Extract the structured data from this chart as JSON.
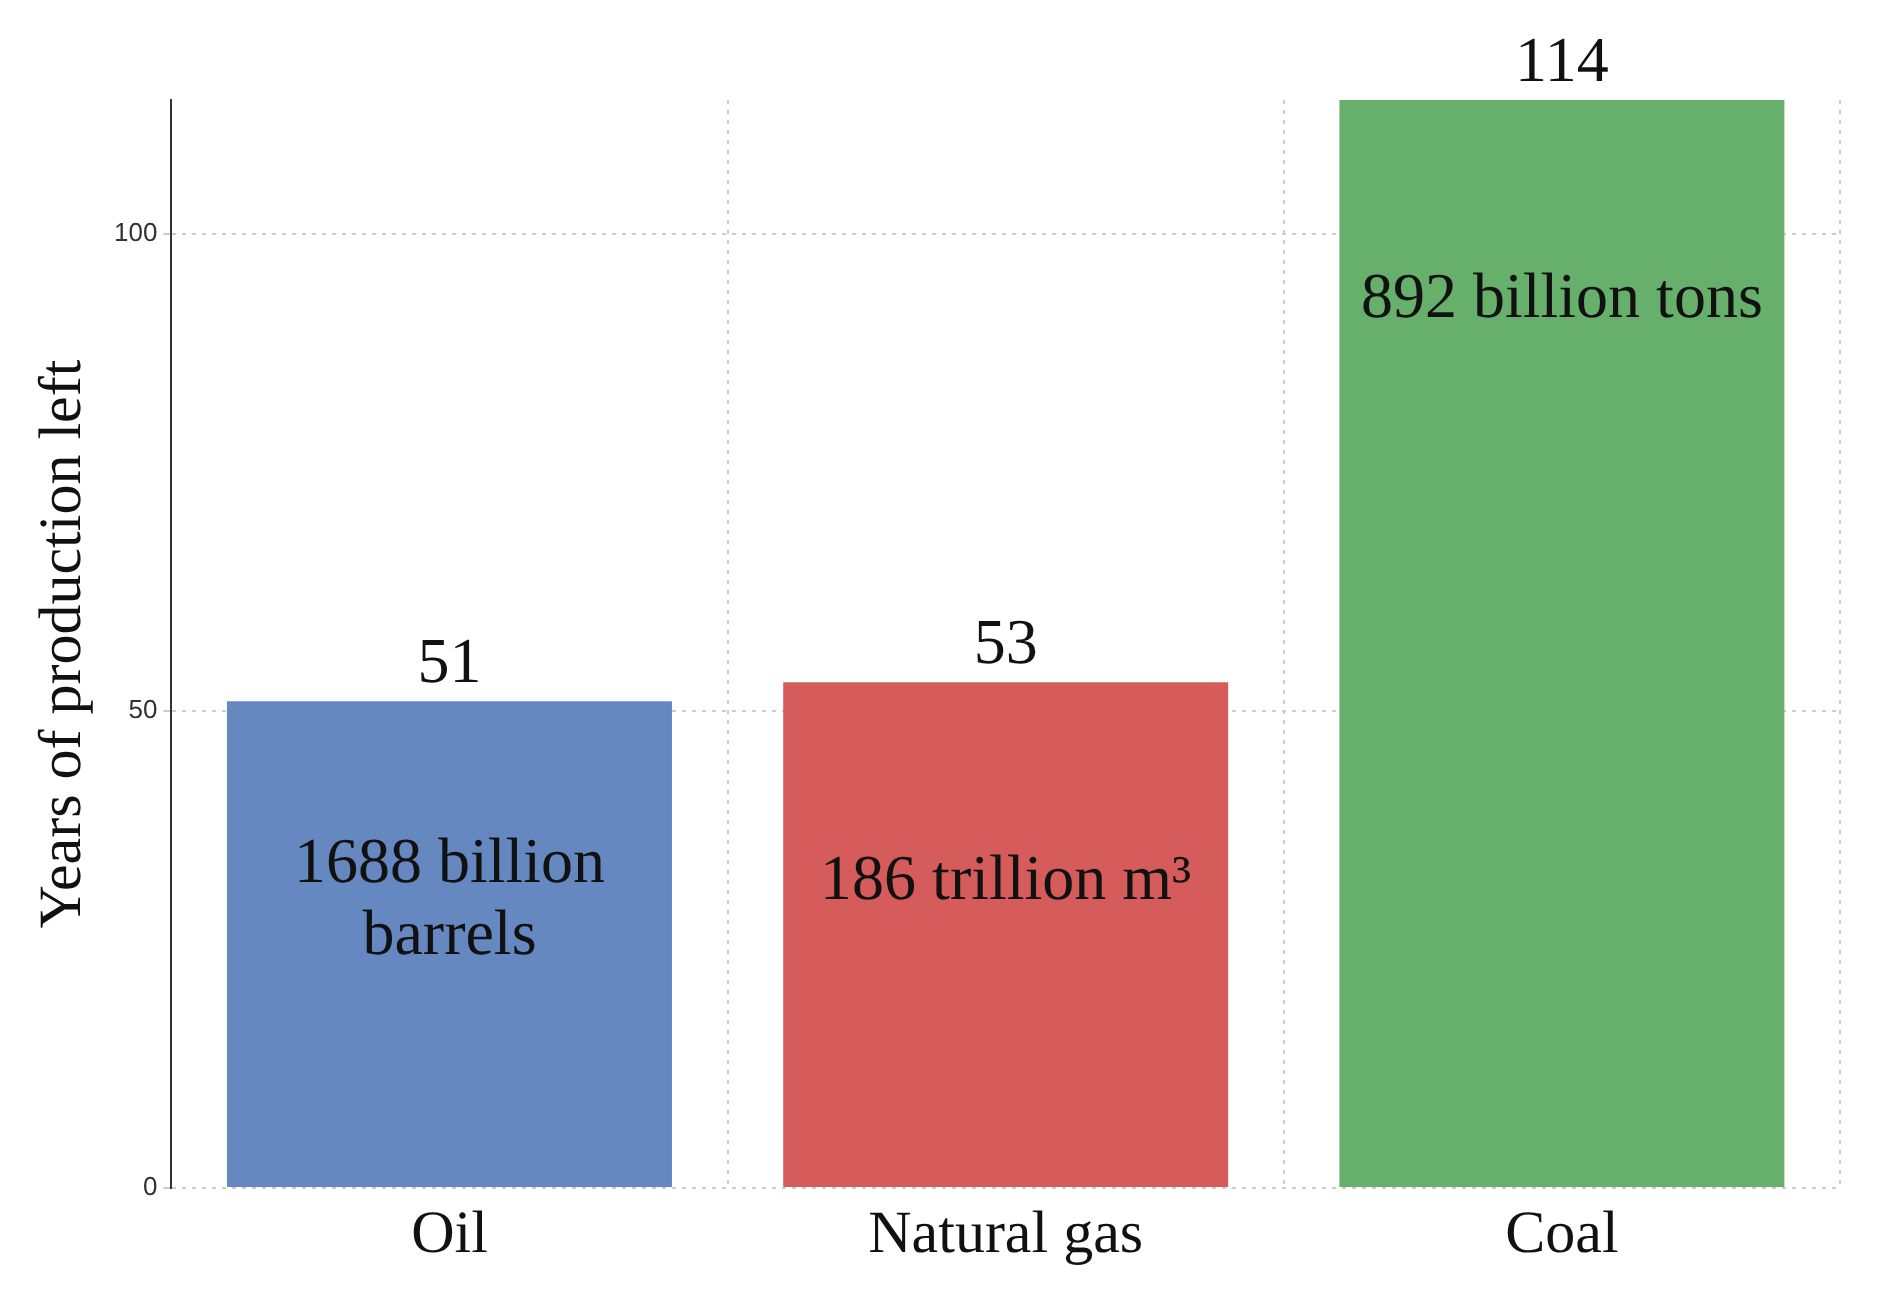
{
  "chart_data": {
    "type": "bar",
    "ylabel": "Years of production left",
    "categories": [
      "Oil",
      "Natural gas",
      "Coal"
    ],
    "values": [
      51,
      53,
      114
    ],
    "colors": [
      "#6688c0",
      "#d65b5b",
      "#67b06b"
    ],
    "ylim": [
      0,
      114
    ],
    "yticks": [
      0,
      50,
      100
    ],
    "grid": true,
    "data_labels": true,
    "annotations": [
      "1688 billion barrels",
      "186 trillion m³",
      "892 billion tons"
    ]
  }
}
